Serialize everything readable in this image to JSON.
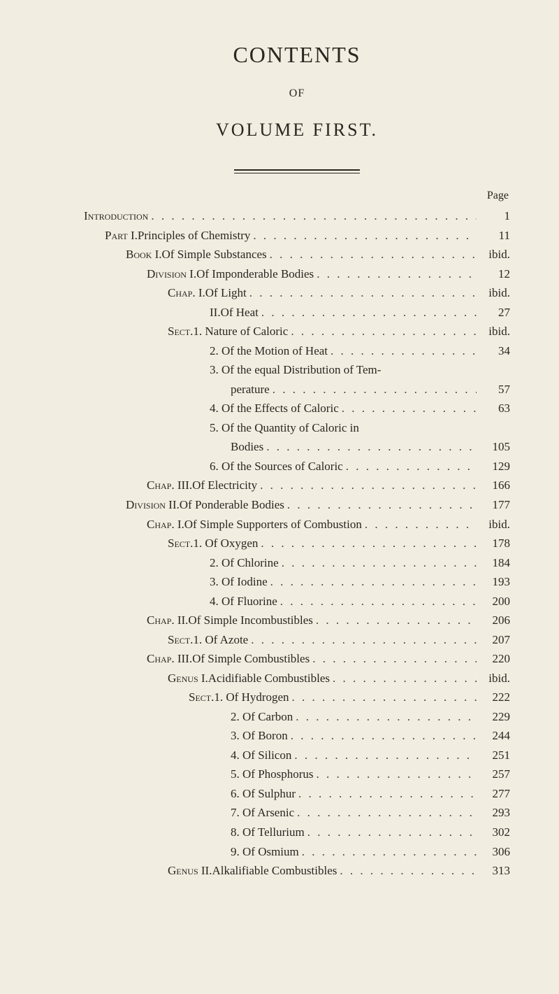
{
  "title": "CONTENTS",
  "of": "OF",
  "volume": "VOLUME FIRST.",
  "pageLabel": "Page",
  "indentUnitPx": 30,
  "entries": [
    {
      "indent": 0,
      "prefix": "Introduction",
      "label": "",
      "page": "1"
    },
    {
      "indent": 1,
      "prefix": "Part I.",
      "label": " Principles of Chemistry",
      "page": "11"
    },
    {
      "indent": 2,
      "prefix": "Book I.",
      "label": " Of Simple Substances",
      "page": "ibid."
    },
    {
      "indent": 3,
      "prefix": "Division I.",
      "label": " Of Imponderable Bodies",
      "page": "12"
    },
    {
      "indent": 4,
      "prefix": "Chap. I.",
      "label": " Of Light",
      "page": "ibid."
    },
    {
      "indent": 6,
      "prefix": "II.",
      "label": " Of Heat",
      "page": "27"
    },
    {
      "indent": 4,
      "prefix": "Sect.",
      "label": " 1. Nature of Caloric",
      "page": "ibid."
    },
    {
      "indent": 6,
      "prefix": "",
      "label": "2. Of the Motion of Heat",
      "page": "34"
    },
    {
      "indent": 6,
      "prefix": "",
      "label": "3. Of the equal Distribution of Tem-",
      "page": ""
    },
    {
      "indent": 7,
      "prefix": "",
      "label": "perature",
      "page": "57"
    },
    {
      "indent": 6,
      "prefix": "",
      "label": "4. Of the Effects of Caloric",
      "page": "63"
    },
    {
      "indent": 6,
      "prefix": "",
      "label": "5. Of the Quantity of Caloric in",
      "page": ""
    },
    {
      "indent": 7,
      "prefix": "",
      "label": "Bodies",
      "page": "105"
    },
    {
      "indent": 6,
      "prefix": "",
      "label": "6. Of the Sources of Caloric",
      "page": "129"
    },
    {
      "indent": 3,
      "prefix": "Chap. III.",
      "label": " Of Electricity",
      "page": "166"
    },
    {
      "indent": 2,
      "prefix": "Division II.",
      "label": " Of Ponderable Bodies",
      "page": "177"
    },
    {
      "indent": 3,
      "prefix": "Chap. I.",
      "label": " Of Simple Supporters of Combustion",
      "page": "ibid."
    },
    {
      "indent": 4,
      "prefix": "Sect.",
      "label": " 1. Of Oxygen",
      "page": "178"
    },
    {
      "indent": 6,
      "prefix": "",
      "label": "2. Of Chlorine",
      "page": "184"
    },
    {
      "indent": 6,
      "prefix": "",
      "label": "3. Of Iodine",
      "page": "193"
    },
    {
      "indent": 6,
      "prefix": "",
      "label": "4. Of Fluorine",
      "page": "200"
    },
    {
      "indent": 3,
      "prefix": "Chap. II.",
      "label": " Of Simple Incombustibles",
      "page": "206"
    },
    {
      "indent": 4,
      "prefix": "Sect.",
      "label": " 1. Of Azote",
      "page": "207"
    },
    {
      "indent": 3,
      "prefix": "Chap. III.",
      "label": " Of Simple Combustibles",
      "page": "220"
    },
    {
      "indent": 4,
      "prefix": "Genus I.",
      "label": " Acidifiable Combustibles",
      "page": "ibid."
    },
    {
      "indent": 5,
      "prefix": "Sect.",
      "label": " 1. Of Hydrogen",
      "page": "222"
    },
    {
      "indent": 7,
      "prefix": "",
      "label": "2. Of Carbon",
      "page": "229"
    },
    {
      "indent": 7,
      "prefix": "",
      "label": "3. Of Boron",
      "page": "244"
    },
    {
      "indent": 7,
      "prefix": "",
      "label": "4. Of Silicon",
      "page": "251"
    },
    {
      "indent": 7,
      "prefix": "",
      "label": "5. Of Phosphorus",
      "page": "257"
    },
    {
      "indent": 7,
      "prefix": "",
      "label": "6. Of Sulphur",
      "page": "277"
    },
    {
      "indent": 7,
      "prefix": "",
      "label": "7. Of Arsenic",
      "page": "293"
    },
    {
      "indent": 7,
      "prefix": "",
      "label": "8. Of Tellurium",
      "page": "302"
    },
    {
      "indent": 7,
      "prefix": "",
      "label": "9. Of Osmium",
      "page": "306"
    },
    {
      "indent": 4,
      "prefix": "Genus II.",
      "label": " Alkalifiable Combustibles",
      "page": "313"
    }
  ]
}
